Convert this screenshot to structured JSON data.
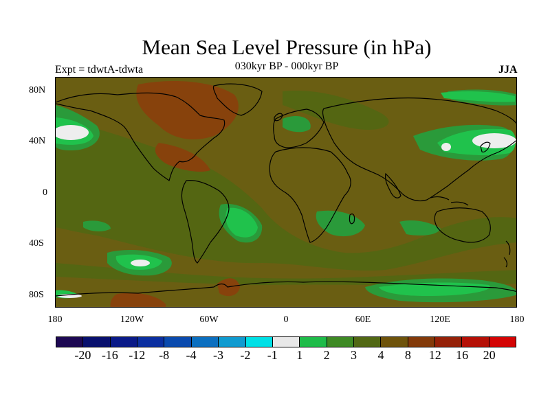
{
  "title": "Mean Sea Level Pressure (in hPa)",
  "subtitle": "030kyr BP - 000kyr BP",
  "experiment_label": "Expt = tdwtA-tdwta",
  "season": "JJA",
  "y_ticks": [
    "80N",
    "40N",
    "0",
    "40S",
    "80S"
  ],
  "x_ticks": [
    "180",
    "120W",
    "60W",
    "0",
    "60E",
    "120E",
    "180"
  ],
  "colorbar": {
    "colors": [
      "#1d0853",
      "#08106e",
      "#0a1a88",
      "#0b2fa0",
      "#0a4aae",
      "#0b6fc0",
      "#109bd0",
      "#00e0e6",
      "#e8e8e8",
      "#1ebc49",
      "#3e8a24",
      "#516814",
      "#6e530b",
      "#833a0a",
      "#952108",
      "#b51006",
      "#d40404"
    ],
    "labels": [
      "-20",
      "-16",
      "-12",
      "-8",
      "-4",
      "-3",
      "-2",
      "-1",
      "1",
      "2",
      "3",
      "4",
      "8",
      "12",
      "16",
      "20"
    ]
  },
  "fill_colors": {
    "base": "#6a5e12",
    "olive": "#546612",
    "brown": "#87420c",
    "green": "#2a9a3a",
    "bright_green": "#20c24c",
    "white": "#eeeeee",
    "coast": "#000000"
  }
}
